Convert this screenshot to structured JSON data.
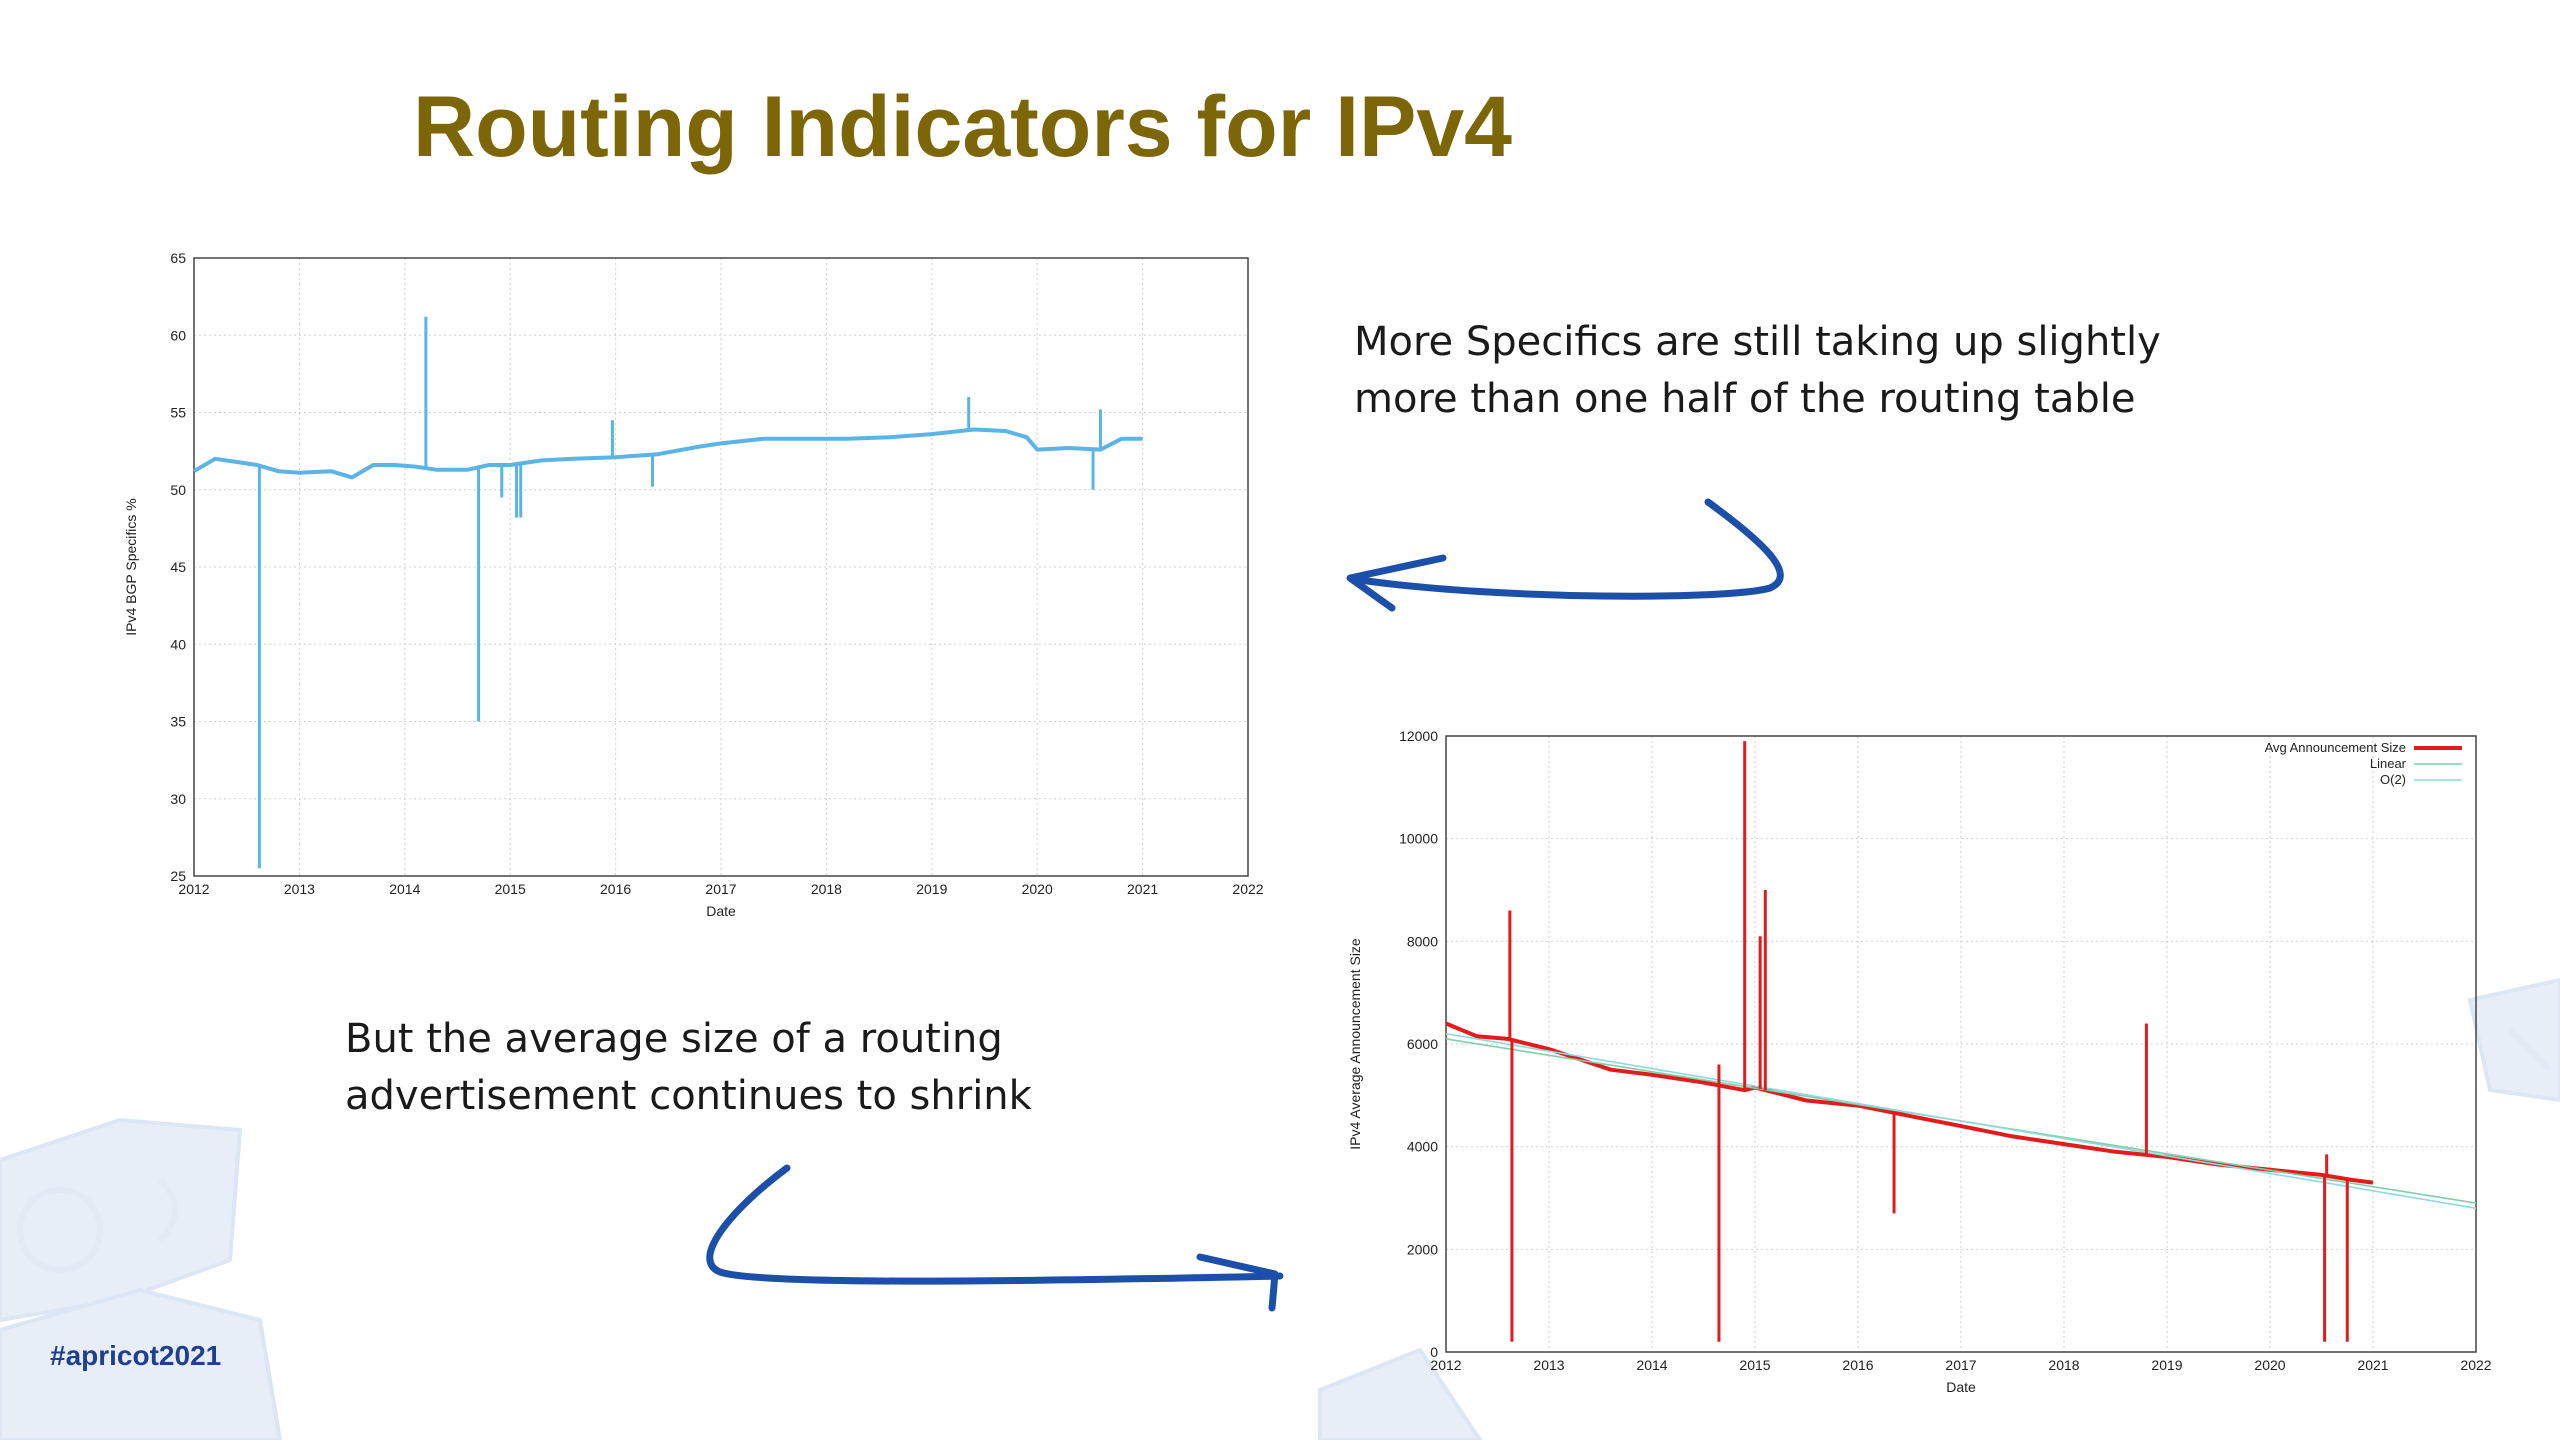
{
  "slide": {
    "title": "Routing Indicators for IPv4",
    "callout_top": [
      "More Specifics are still taking up slightly",
      "more than one half of the routing table"
    ],
    "callout_bottom": [
      "But the average size of a routing",
      "advertisement continues to shrink"
    ],
    "hashtag": "#apricot2021",
    "colors": {
      "title": "#7d6608",
      "arrow": "#1b4faa",
      "hashtag": "#1f3f8f"
    }
  },
  "chart_data": [
    {
      "type": "line",
      "title": "",
      "xlabel": "Date",
      "ylabel": "IPv4 BGP Specifics %",
      "xlim": [
        2012,
        2022
      ],
      "ylim": [
        25,
        65
      ],
      "x_ticks": [
        "2012",
        "2013",
        "2014",
        "2015",
        "2016",
        "2017",
        "2018",
        "2019",
        "2020",
        "2021",
        "2022"
      ],
      "y_ticks": [
        "25",
        "30",
        "35",
        "40",
        "45",
        "50",
        "55",
        "60",
        "65"
      ],
      "grid": true,
      "series_color": "#5ab4e5",
      "series": [
        {
          "x": [
            2012.0,
            2012.2,
            2012.4,
            2012.6,
            2012.8,
            2013.0,
            2013.3,
            2013.5,
            2013.7,
            2013.9,
            2014.1,
            2014.3,
            2014.6,
            2014.8,
            2015.0,
            2015.3,
            2015.6,
            2016.0,
            2016.4,
            2016.8,
            2017.0,
            2017.4,
            2017.8,
            2018.2,
            2018.6,
            2019.0,
            2019.4,
            2019.7,
            2019.9,
            2020.0,
            2020.3,
            2020.6,
            2020.8,
            2021.0
          ],
          "y": [
            51.2,
            52.0,
            51.8,
            51.6,
            51.2,
            51.1,
            51.2,
            50.8,
            51.6,
            51.6,
            51.5,
            51.3,
            51.3,
            51.6,
            51.6,
            51.9,
            52.0,
            52.1,
            52.3,
            52.8,
            53.0,
            53.3,
            53.3,
            53.3,
            53.4,
            53.6,
            53.9,
            53.8,
            53.4,
            52.6,
            52.7,
            52.6,
            53.3,
            53.3
          ]
        }
      ],
      "spikes": [
        {
          "x": 2012.62,
          "y": 25.5
        },
        {
          "x": 2014.2,
          "y": 61.2
        },
        {
          "x": 2014.7,
          "y": 35.0
        },
        {
          "x": 2014.92,
          "y": 49.5
        },
        {
          "x": 2015.06,
          "y": 48.2
        },
        {
          "x": 2015.1,
          "y": 48.2
        },
        {
          "x": 2015.97,
          "y": 54.5
        },
        {
          "x": 2016.35,
          "y": 50.2
        },
        {
          "x": 2019.35,
          "y": 56.0
        },
        {
          "x": 2020.53,
          "y": 50.0
        },
        {
          "x": 2020.6,
          "y": 55.2
        }
      ]
    },
    {
      "type": "line",
      "title": "",
      "xlabel": "Date",
      "ylabel": "IPv4 Average Announcement Size",
      "xlim": [
        2012,
        2022
      ],
      "ylim": [
        0,
        12000
      ],
      "x_ticks": [
        "2012",
        "2013",
        "2014",
        "2015",
        "2016",
        "2017",
        "2018",
        "2019",
        "2020",
        "2021",
        "2022"
      ],
      "y_ticks": [
        "0",
        "2000",
        "4000",
        "6000",
        "8000",
        "10000",
        "12000"
      ],
      "grid": true,
      "legend_position": "top-right",
      "series": [
        {
          "name": "Avg Announcement Size",
          "color": "#e21b1b",
          "x": [
            2012.0,
            2012.3,
            2012.6,
            2013.0,
            2013.3,
            2013.6,
            2014.0,
            2014.5,
            2014.9,
            2015.0,
            2015.5,
            2016.0,
            2016.5,
            2017.0,
            2017.5,
            2018.0,
            2018.5,
            2019.0,
            2019.5,
            2020.0,
            2020.5,
            2020.8,
            2021.0
          ],
          "y": [
            6400,
            6150,
            6100,
            5900,
            5700,
            5500,
            5400,
            5250,
            5100,
            5150,
            4900,
            4800,
            4600,
            4400,
            4200,
            4050,
            3900,
            3800,
            3650,
            3550,
            3450,
            3350,
            3300
          ]
        },
        {
          "name": "Linear",
          "color": "#7fcfa8",
          "x": [
            2012,
            2022
          ],
          "y": [
            6100,
            2900
          ]
        },
        {
          "name": "O(2)",
          "color": "#8fd8e0",
          "x": [
            2012,
            2022
          ],
          "y": [
            6200,
            2800
          ]
        }
      ],
      "spikes": [
        {
          "x": 2012.62,
          "y": 8600
        },
        {
          "x": 2012.64,
          "y": 200
        },
        {
          "x": 2014.65,
          "y": 200
        },
        {
          "x": 2014.65,
          "y": 5600
        },
        {
          "x": 2014.9,
          "y": 11900
        },
        {
          "x": 2015.05,
          "y": 8100
        },
        {
          "x": 2015.1,
          "y": 9000
        },
        {
          "x": 2016.35,
          "y": 2700
        },
        {
          "x": 2018.8,
          "y": 6400
        },
        {
          "x": 2020.53,
          "y": 200
        },
        {
          "x": 2020.55,
          "y": 3850
        },
        {
          "x": 2020.75,
          "y": 200
        }
      ]
    }
  ]
}
